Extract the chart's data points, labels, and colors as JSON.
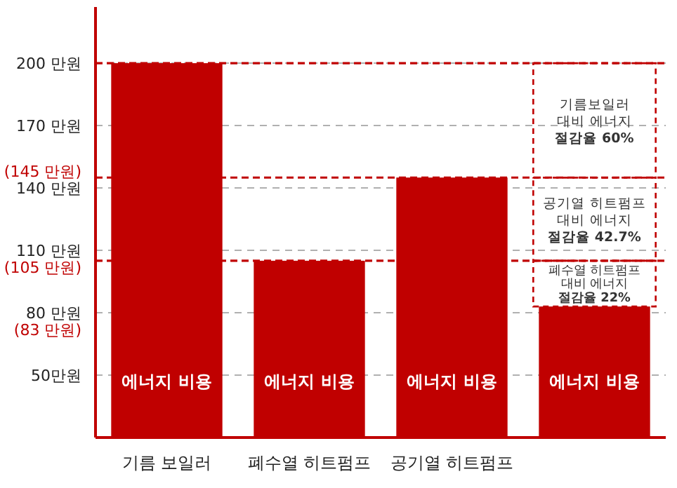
{
  "chart_data": {
    "type": "bar",
    "categories": [
      "기름 보일러",
      "폐수열 히트펌프",
      "공기열 히트펌프",
      null
    ],
    "series": [
      {
        "name": "에너지 비용",
        "color": "#c00000",
        "values": [
          200,
          105,
          145,
          83
        ]
      }
    ],
    "ylim": [
      20,
      227
    ],
    "yticks": [
      {
        "value": 50,
        "label": "50만원"
      },
      {
        "value": 80,
        "label": "80 만원"
      },
      {
        "value": 110,
        "label": "110 만원"
      },
      {
        "value": 140,
        "label": "140 만원"
      },
      {
        "value": 170,
        "label": "170 만원"
      },
      {
        "value": 200,
        "label": "200 만원"
      }
    ],
    "grid": "y",
    "ref_lines": [
      {
        "axis": "y",
        "value": 200,
        "label": null,
        "color": "#c00000",
        "line_style": "dashed"
      },
      {
        "axis": "y",
        "value": 145,
        "label": "(145 만원)",
        "color": "#c00000",
        "line_style": "dashed"
      },
      {
        "axis": "y",
        "value": 105,
        "label": "(105 만원)",
        "color": "#c00000",
        "line_style": "dashed"
      }
    ],
    "annotations": [
      "기름보일러\n대비 에너지\n절감율 60%",
      "공기열 히트펌프\n대비 에너지\n절감율 42.7%",
      "폐수열 히트펌프\n대비 에너지\n절감율 22%",
      "(83 만원)"
    ]
  }
}
